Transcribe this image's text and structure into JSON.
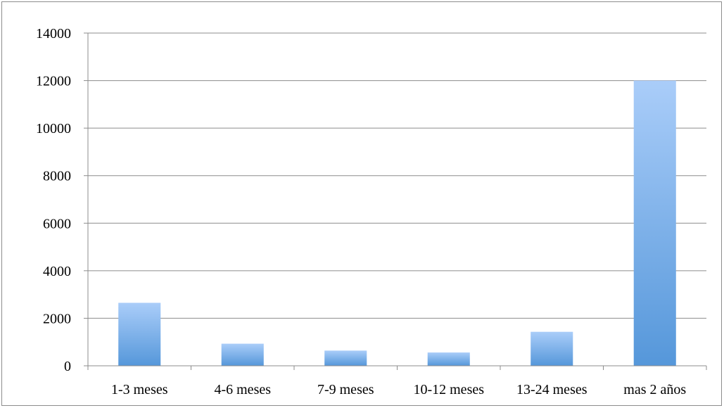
{
  "chart_data": {
    "type": "bar",
    "title": "",
    "xlabel": "",
    "ylabel": "",
    "categories": [
      "1-3 meses",
      "4-6 meses",
      "7-9 meses",
      "10-12 meses",
      "13-24 meses",
      "mas 2 años"
    ],
    "values": [
      2650,
      930,
      640,
      560,
      1430,
      12000
    ],
    "ylim": [
      0,
      14000
    ],
    "yticks": [
      0,
      2000,
      4000,
      6000,
      8000,
      10000,
      12000,
      14000
    ],
    "grid": true,
    "legend": "none",
    "colors": {
      "bar_top": "#aacdf9",
      "bar_bottom": "#5597da",
      "grid": "#8c8c8c",
      "axis": "#8c8c8c"
    }
  }
}
